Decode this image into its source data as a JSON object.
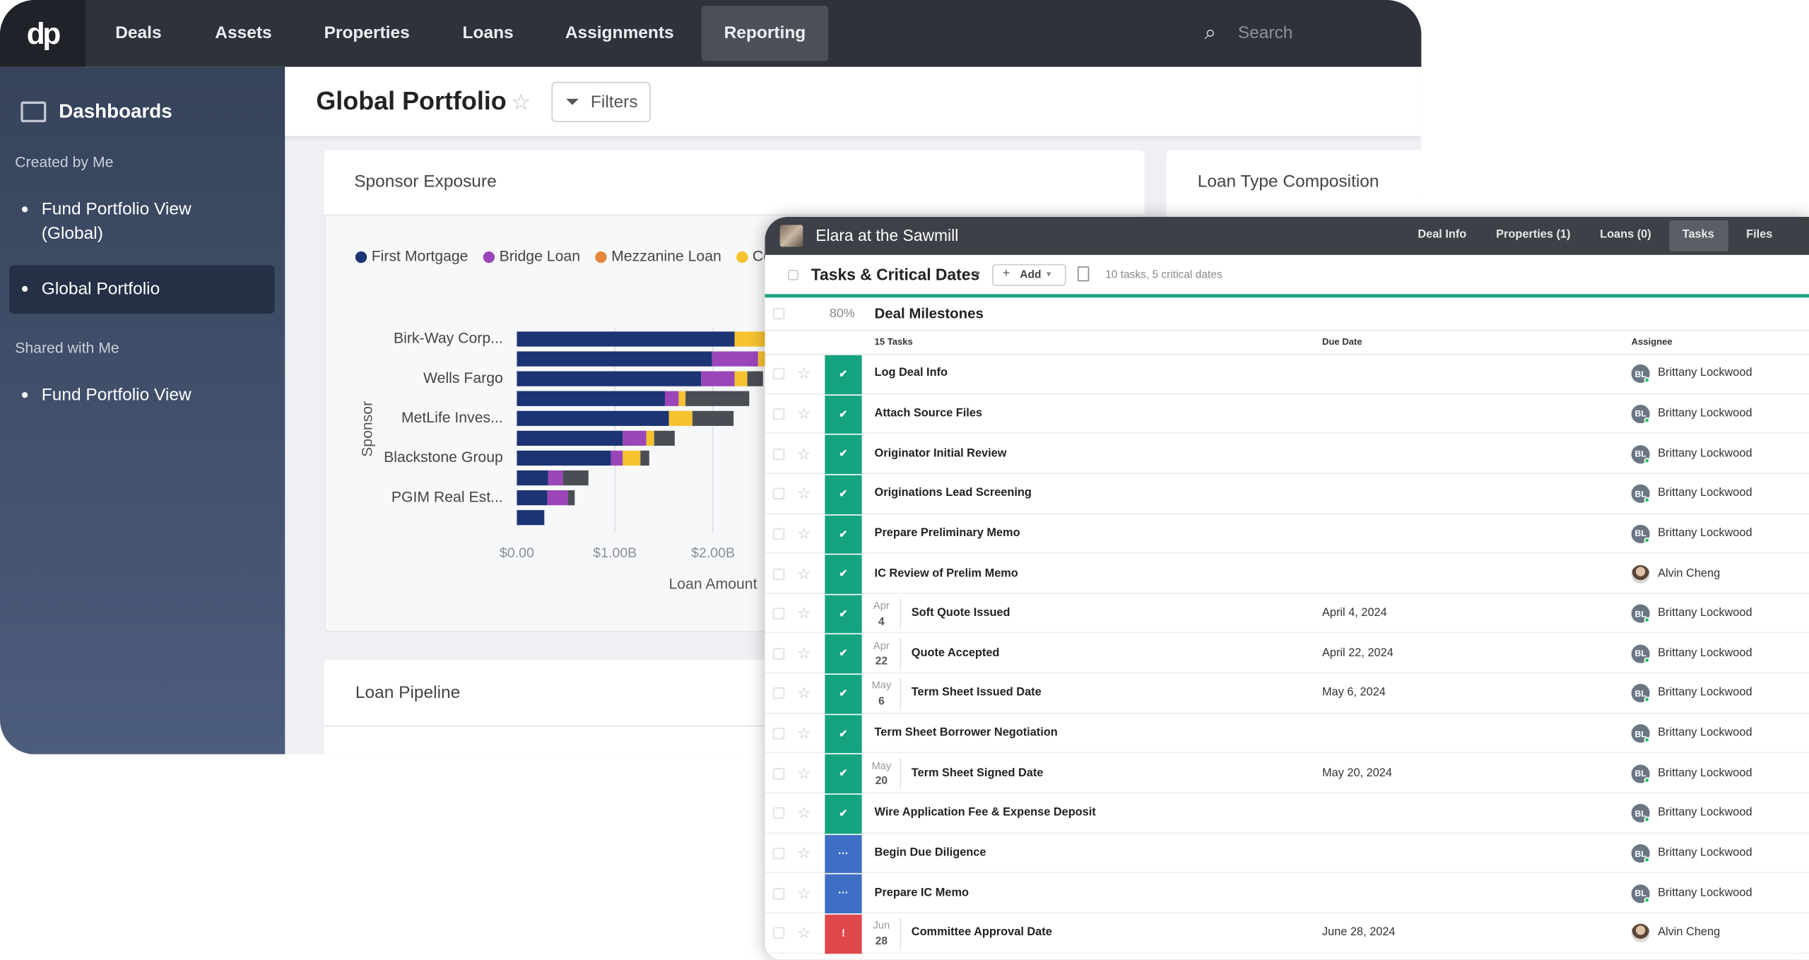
{
  "nav": {
    "logo": "dp",
    "items": [
      "Deals",
      "Assets",
      "Properties",
      "Loans",
      "Assignments",
      "Reporting"
    ],
    "active": 5,
    "search": "Search"
  },
  "sidebar": {
    "title": "Dashboards",
    "sections": [
      {
        "heading": "Created by Me",
        "items": [
          "Fund Portfolio View (Global)",
          "Global Portfolio"
        ]
      },
      {
        "heading": "Shared with Me",
        "items": [
          "Fund Portfolio View"
        ]
      }
    ],
    "active": {
      "section": 0,
      "item": 1
    }
  },
  "header": {
    "title": "Global Portfolio",
    "filters": "Filters"
  },
  "cards": {
    "sponsor": "Sponsor Exposure",
    "loan_type": "Loan Type Composition",
    "pipeline": "Loan Pipeline"
  },
  "chart_data": {
    "type": "bar",
    "orientation": "horizontal",
    "stacked": true,
    "y_label": "Sponsor",
    "x_label": "Loan Amount",
    "categories": [
      "Birk-Way Corp...",
      null,
      "Wells Fargo",
      null,
      "MetLife Inves...",
      null,
      "Blackstone Group",
      null,
      "PGIM Real Est...",
      null
    ],
    "series": [
      {
        "name": "First Mortgage",
        "color": "#1c3474",
        "values": [
          2.22,
          1.99,
          1.88,
          1.51,
          1.55,
          1.08,
          0.96,
          0.32,
          0.31,
          0.28
        ]
      },
      {
        "name": "Bridge Loan",
        "color": "#9a45b8",
        "values": [
          0,
          0.47,
          0.34,
          0.14,
          0,
          0.24,
          0.12,
          0.15,
          0.21,
          0
        ]
      },
      {
        "name": "Mezzanine Loan",
        "color": "#e8873a",
        "values": [
          0,
          0,
          0,
          0,
          0,
          0,
          0,
          0,
          0,
          0
        ]
      },
      {
        "name": "Co",
        "color": "#f6c230",
        "values": [
          0.35,
          0.1,
          0.13,
          0.07,
          0.24,
          0.08,
          0.18,
          0,
          0,
          0
        ]
      },
      {
        "color": "#4a4d54",
        "values": [
          0,
          0,
          0.16,
          0.65,
          0.42,
          0.21,
          0.09,
          0.26,
          0.07,
          0
        ]
      }
    ],
    "xlim": [
      0,
      2.6
    ],
    "xticks": [
      {
        "value": 0,
        "label": "$0.00"
      },
      {
        "value": 1,
        "label": "$1.00B"
      },
      {
        "value": 2,
        "label": "$2.00B"
      }
    ],
    "grid": true
  },
  "panel": {
    "title": "Elara at the Sawmill",
    "tabs": [
      "Deal Info",
      "Properties (1)",
      "Loans (0)",
      "Tasks",
      "Files"
    ],
    "active_tab": 3,
    "section_title": "Tasks & Critical Dates",
    "add": "Add",
    "summary": "10 tasks, 5 critical dates",
    "group": {
      "progress": "80%",
      "title": "Deal Milestones"
    },
    "columns": [
      "15 Tasks",
      "Due Date",
      "Assignee"
    ],
    "tasks": [
      {
        "name": "Log Deal Info",
        "initials": "BL",
        "assignee": "Brittany Lockwood",
        "status_color": "#15a27f"
      },
      {
        "name": "Attach Source Files",
        "initials": "BL",
        "assignee": "Brittany Lockwood",
        "status_color": "#15a27f"
      },
      {
        "name": "Originator Initial Review",
        "initials": "BL",
        "assignee": "Brittany Lockwood",
        "status_color": "#15a27f"
      },
      {
        "name": "Originations Lead Screening",
        "initials": "BL",
        "assignee": "Brittany Lockwood",
        "status_color": "#15a27f"
      },
      {
        "name": "Prepare Preliminary Memo",
        "initials": "BL",
        "assignee": "Brittany Lockwood",
        "status_color": "#15a27f"
      },
      {
        "name": "IC Review of Prelim Memo",
        "assignee": "Alvin Cheng",
        "status_color": "#15a27f"
      },
      {
        "name": "Soft Quote Issued",
        "month": "Apr",
        "day": 4,
        "due": "April 4, 2024",
        "initials": "BL",
        "assignee": "Brittany Lockwood",
        "status_color": "#15a27f"
      },
      {
        "name": "Quote Accepted",
        "month": "Apr",
        "day": 22,
        "due": "April 22, 2024",
        "initials": "BL",
        "assignee": "Brittany Lockwood",
        "status_color": "#15a27f"
      },
      {
        "name": "Term Sheet Issued Date",
        "month": "May",
        "day": 6,
        "due": "May 6, 2024",
        "initials": "BL",
        "assignee": "Brittany Lockwood",
        "status_color": "#15a27f"
      },
      {
        "name": "Term Sheet Borrower Negotiation",
        "initials": "BL",
        "assignee": "Brittany Lockwood",
        "status_color": "#15a27f"
      },
      {
        "name": "Term Sheet Signed Date",
        "month": "May",
        "day": 20,
        "due": "May 20, 2024",
        "initials": "BL",
        "assignee": "Brittany Lockwood",
        "status_color": "#15a27f"
      },
      {
        "name": "Wire Application Fee & Expense Deposit",
        "initials": "BL",
        "assignee": "Brittany Lockwood",
        "status_color": "#15a27f"
      },
      {
        "name": "Begin Due Diligence",
        "initials": "BL",
        "assignee": "Brittany Lockwood",
        "status_color": "#3f6fc4"
      },
      {
        "name": "Prepare IC Memo",
        "initials": "BL",
        "assignee": "Brittany Lockwood",
        "status_color": "#3f6fc4"
      },
      {
        "name": "Committee Approval Date",
        "month": "Jun",
        "day": 28,
        "due": "June 28, 2024",
        "assignee": "Alvin Cheng",
        "status_color": "#e0474a"
      }
    ]
  }
}
